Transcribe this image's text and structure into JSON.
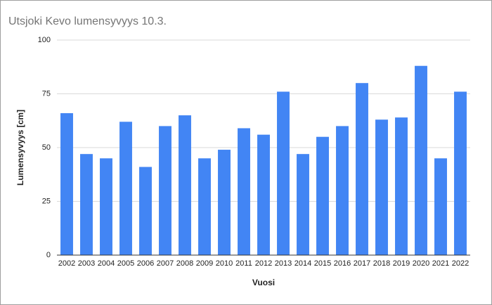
{
  "chart_data": {
    "type": "bar",
    "title": "Utsjoki Kevo lumensyvyys 10.3.",
    "x_label": "Vuosi",
    "y_label": "Lumensyvyys [cm]",
    "categories": [
      "2002",
      "2003",
      "2004",
      "2005",
      "2006",
      "2007",
      "2008",
      "2009",
      "2010",
      "2011",
      "2012",
      "2013",
      "2014",
      "2015",
      "2016",
      "2017",
      "2018",
      "2019",
      "2020",
      "2021",
      "2022"
    ],
    "values": [
      66,
      47,
      45,
      62,
      41,
      60,
      65,
      45,
      49,
      59,
      56,
      76,
      47,
      55,
      60,
      80,
      63,
      64,
      88,
      45,
      76
    ],
    "color": "#4285f4",
    "ylim": [
      0,
      100
    ],
    "yticks": [
      0,
      25,
      50,
      75,
      100
    ],
    "grid": true
  }
}
